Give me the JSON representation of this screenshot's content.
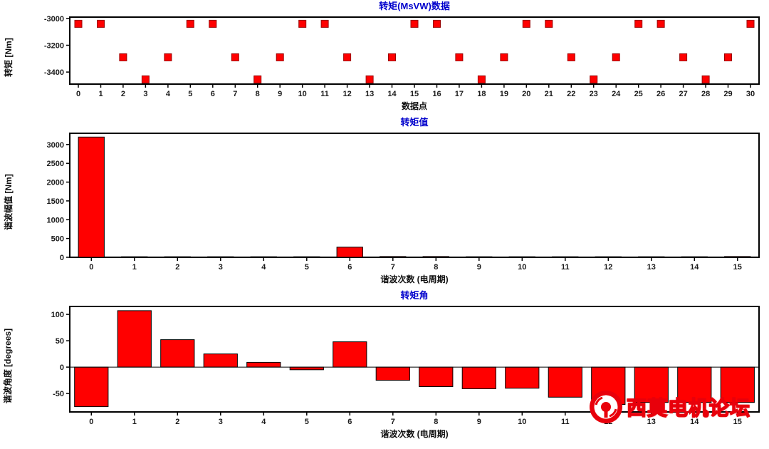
{
  "chart_data": [
    {
      "type": "scatter",
      "title": "转矩(MsVW)数据",
      "xlabel": "数据点",
      "ylabel": "转矩 [Nm]",
      "x": [
        0,
        1,
        2,
        3,
        4,
        5,
        6,
        7,
        8,
        9,
        10,
        11,
        12,
        13,
        14,
        15,
        16,
        17,
        18,
        19,
        20,
        21,
        22,
        23,
        24,
        25,
        26,
        27,
        28,
        29,
        30
      ],
      "y": [
        -3040,
        -3040,
        -3290,
        -3455,
        -3290,
        -3040,
        -3040,
        -3290,
        -3455,
        -3290,
        -3040,
        -3040,
        -3290,
        -3455,
        -3290,
        -3040,
        -3040,
        -3290,
        -3455,
        -3290,
        -3040,
        -3040,
        -3290,
        -3455,
        -3290,
        -3040,
        -3040,
        -3290,
        -3455,
        -3290,
        -3040
      ],
      "ylim": [
        -3490,
        -2990
      ],
      "yticks": [
        -3000,
        -3200,
        -3400
      ],
      "marker_color": "#ff0000",
      "marker_border": "#990000",
      "title_color": "#0000cc",
      "grid": false,
      "legend": "none"
    },
    {
      "type": "bar",
      "title": "转矩值",
      "xlabel": "谐波次数 (电周期)",
      "ylabel": "谐波幅值 [Nm]",
      "categories": [
        0,
        1,
        2,
        3,
        4,
        5,
        6,
        7,
        8,
        9,
        10,
        11,
        12,
        13,
        14,
        15
      ],
      "values": [
        3200,
        15,
        15,
        15,
        15,
        15,
        270,
        20,
        20,
        15,
        15,
        15,
        15,
        15,
        15,
        20
      ],
      "ylim": [
        0,
        3300
      ],
      "yticks": [
        0,
        500,
        1000,
        1500,
        2000,
        2500,
        3000
      ],
      "bar_fraction": 0.6,
      "bar_color": "#ff0000",
      "bar_border": "#000000",
      "title_color": "#0000cc",
      "grid": false,
      "legend": "none"
    },
    {
      "type": "bar",
      "title": "转矩角",
      "xlabel": "谐波次数 (电周期)",
      "ylabel": "谐波角度 [degrees]",
      "categories": [
        0,
        1,
        2,
        3,
        4,
        5,
        6,
        7,
        8,
        9,
        10,
        11,
        12,
        13,
        14,
        15
      ],
      "values": [
        -75,
        107,
        52,
        25,
        9,
        -5,
        48,
        -25,
        -37,
        -41,
        -40,
        -57,
        -71,
        -67,
        -67,
        -67
      ],
      "ylim": [
        -85,
        115
      ],
      "yticks": [
        -50,
        0,
        50,
        100
      ],
      "bar_fraction": 0.78,
      "bar_color": "#ff0000",
      "bar_border": "#000000",
      "title_color": "#0000cc",
      "grid": false,
      "legend": "none"
    }
  ],
  "watermark": {
    "text": "西莫电机论坛",
    "logo_color": "#e8000b"
  }
}
